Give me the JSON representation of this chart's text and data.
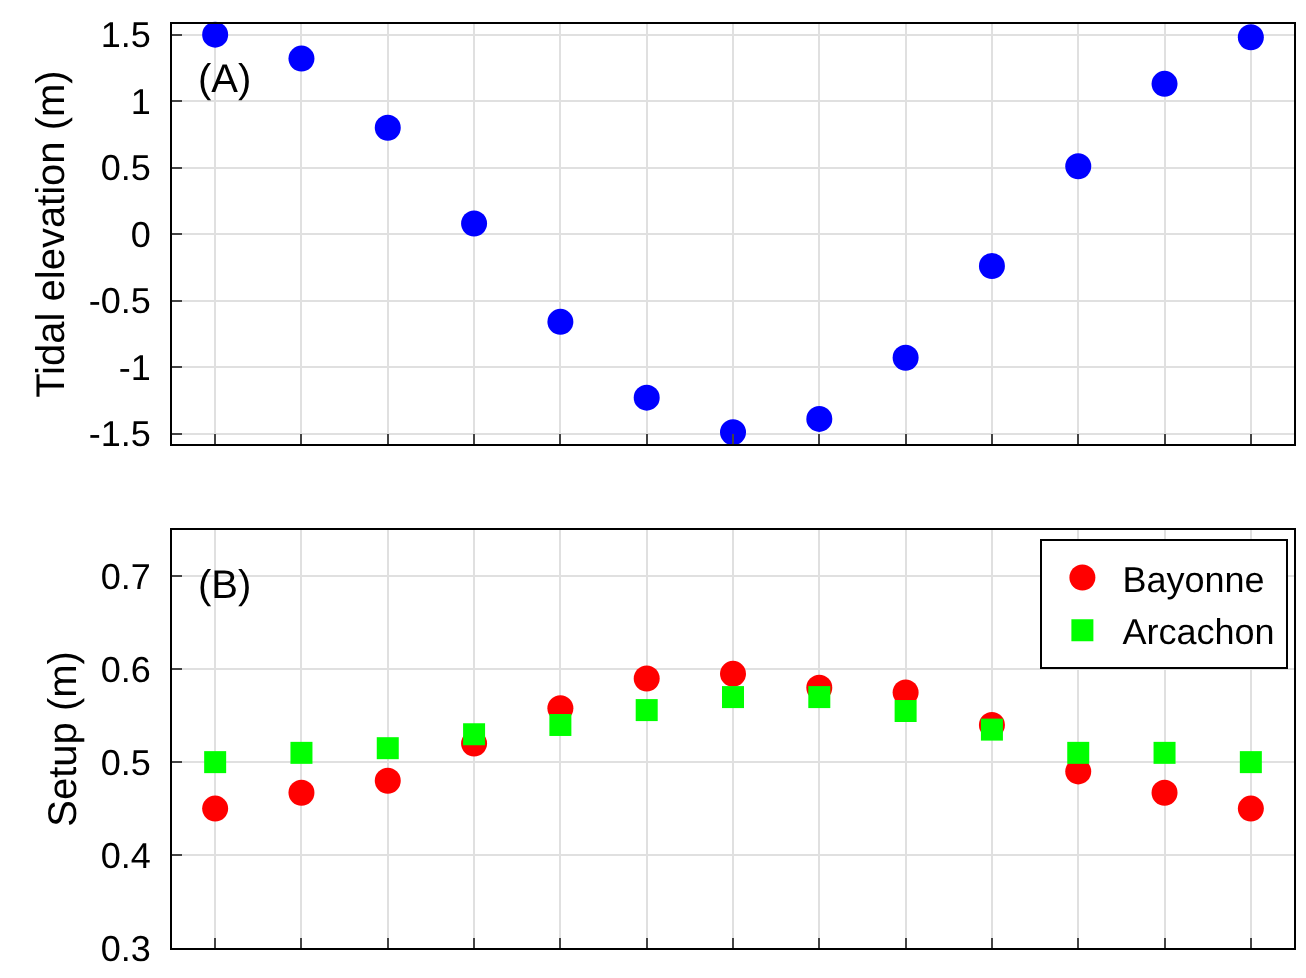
{
  "chart_data": [
    {
      "type": "scatter",
      "ylabel": "Tidal elevation (m)",
      "annotations": [
        "(A)"
      ],
      "categories": [
        null,
        null,
        null,
        null,
        null,
        null,
        null,
        null,
        null,
        null,
        null,
        null,
        null
      ],
      "color": "#0000ff",
      "marker": "circle",
      "values": [
        1.5,
        1.32,
        0.8,
        0.08,
        -0.66,
        -1.23,
        -1.49,
        -1.39,
        -0.93,
        -0.24,
        0.51,
        1.13,
        1.48
      ],
      "ylim": [
        -1.58,
        1.58
      ],
      "yticks": [
        -1.5,
        -1,
        -0.5,
        0,
        0.5,
        1,
        1.5
      ],
      "grid": true,
      "tick_labels": "y"
    },
    {
      "type": "scatter",
      "ylabel": "Setup (m)",
      "annotations": [
        "(B)"
      ],
      "categories": [
        null,
        null,
        null,
        null,
        null,
        null,
        null,
        null,
        null,
        null,
        null,
        null,
        null
      ],
      "series": [
        {
          "name": "Bayonne",
          "color": "#ff0000",
          "marker": "circle",
          "values": [
            0.45,
            0.467,
            0.48,
            0.52,
            0.558,
            0.59,
            0.595,
            0.58,
            0.575,
            0.54,
            0.49,
            0.467,
            0.45
          ]
        },
        {
          "name": "Arcachon",
          "color": "#00ff00",
          "marker": "square",
          "values": [
            0.5,
            0.51,
            0.515,
            0.53,
            0.54,
            0.556,
            0.57,
            0.57,
            0.555,
            0.535,
            0.51,
            0.51,
            0.5
          ]
        }
      ],
      "ylim": [
        0.3,
        0.75
      ],
      "yticks": [
        0.3,
        0.4,
        0.5,
        0.6,
        0.7
      ],
      "grid": true,
      "legend": "top right",
      "tick_labels": "y"
    }
  ]
}
